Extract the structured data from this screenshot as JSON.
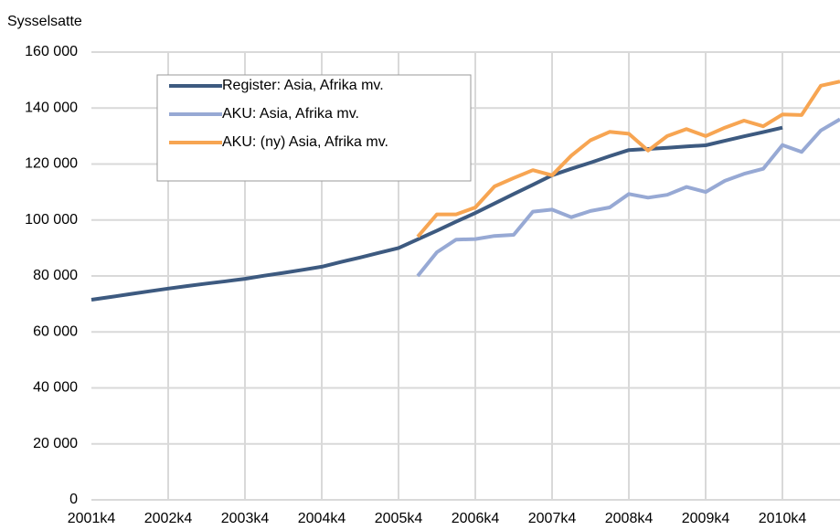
{
  "chart_data": {
    "type": "line",
    "y_label": "Sysselsatte",
    "categories": [
      "2001k4",
      null,
      null,
      null,
      "2002k4",
      null,
      null,
      null,
      "2003k4",
      null,
      null,
      null,
      "2004k4",
      null,
      null,
      null,
      "2005k4",
      null,
      null,
      null,
      "2006k4",
      null,
      null,
      null,
      "2007k4",
      null,
      null,
      null,
      "2008k4",
      null,
      null,
      null,
      "2009k4",
      null,
      null,
      null,
      "2010k4",
      null,
      null,
      null
    ],
    "series": [
      {
        "name": "Register: Asia, Afrika mv.",
        "color": "#3d5a80",
        "values": [
          71500,
          72500,
          73500,
          74500,
          75500,
          76400,
          77300,
          78100,
          79000,
          80100,
          81100,
          82200,
          83300,
          85000,
          86600,
          88300,
          90000,
          93100,
          96200,
          99400,
          102500,
          105900,
          109300,
          112600,
          116000,
          118300,
          120500,
          122800,
          125000,
          125400,
          125800,
          126300,
          126700,
          128300,
          129900,
          131400,
          133000,
          null,
          null,
          null
        ]
      },
      {
        "name": "AKU: Asia, Afrika mv.",
        "color": "#97a9d4",
        "values": [
          null,
          null,
          null,
          null,
          null,
          null,
          null,
          null,
          null,
          null,
          null,
          null,
          null,
          null,
          null,
          null,
          null,
          80000,
          88500,
          93000,
          93200,
          94300,
          94700,
          103000,
          103700,
          101000,
          103200,
          104500,
          109300,
          108000,
          109000,
          111800,
          110000,
          114000,
          116500,
          118300,
          126800,
          124300,
          132000,
          136000
        ]
      },
      {
        "name": "AKU: (ny) Asia, Afrika mv.",
        "color": "#f7a552",
        "values": [
          null,
          null,
          null,
          null,
          null,
          null,
          null,
          null,
          null,
          null,
          null,
          null,
          null,
          null,
          null,
          null,
          null,
          94000,
          102000,
          102000,
          104500,
          112000,
          115000,
          117800,
          116000,
          123000,
          128500,
          131500,
          130800,
          124800,
          130000,
          132500,
          130000,
          133000,
          135500,
          133500,
          137700,
          137500,
          148000,
          149500
        ]
      }
    ],
    "ylim": [
      0,
      160000
    ],
    "yticks": [
      0,
      {
        "value": 20000,
        "label": "20 000"
      },
      {
        "value": 40000,
        "label": "40 000"
      },
      {
        "value": 60000,
        "label": "60 000"
      },
      {
        "value": 80000,
        "label": "80 000"
      },
      {
        "value": 100000,
        "label": "100 000"
      },
      {
        "value": 120000,
        "label": "120 000"
      },
      {
        "value": 140000,
        "label": "140 000"
      },
      {
        "value": 160000,
        "label": "160 000"
      }
    ],
    "grid": true,
    "legend": "top-left"
  }
}
